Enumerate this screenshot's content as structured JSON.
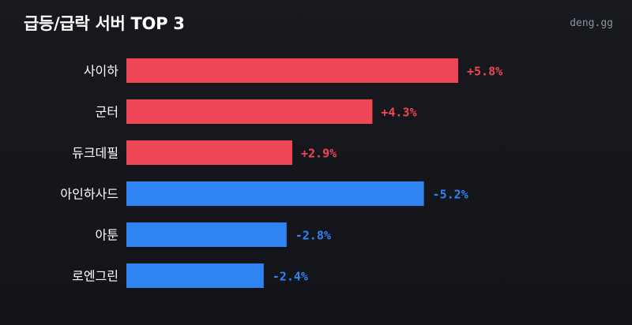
{
  "header": {
    "title": "급등/급락 서버 TOP 3",
    "brand": "deng.gg"
  },
  "colors": {
    "background": "#15171c",
    "up": "#ef4655",
    "down": "#2f84f2"
  },
  "chart_data": {
    "type": "bar",
    "orientation": "horizontal",
    "title": "급등/급락 서버 TOP 3",
    "unit": "%",
    "categories": [
      "사이하",
      "군터",
      "듀크데필",
      "아인하사드",
      "아툰",
      "로엔그린"
    ],
    "values": [
      5.8,
      4.3,
      2.9,
      -5.2,
      -2.8,
      -2.4
    ],
    "labels": [
      "+5.8%",
      "+4.3%",
      "+2.9%",
      "-5.2%",
      "-2.8%",
      "-2.4%"
    ],
    "direction": [
      "up",
      "up",
      "up",
      "down",
      "down",
      "down"
    ],
    "grid": false,
    "legend": "none"
  }
}
